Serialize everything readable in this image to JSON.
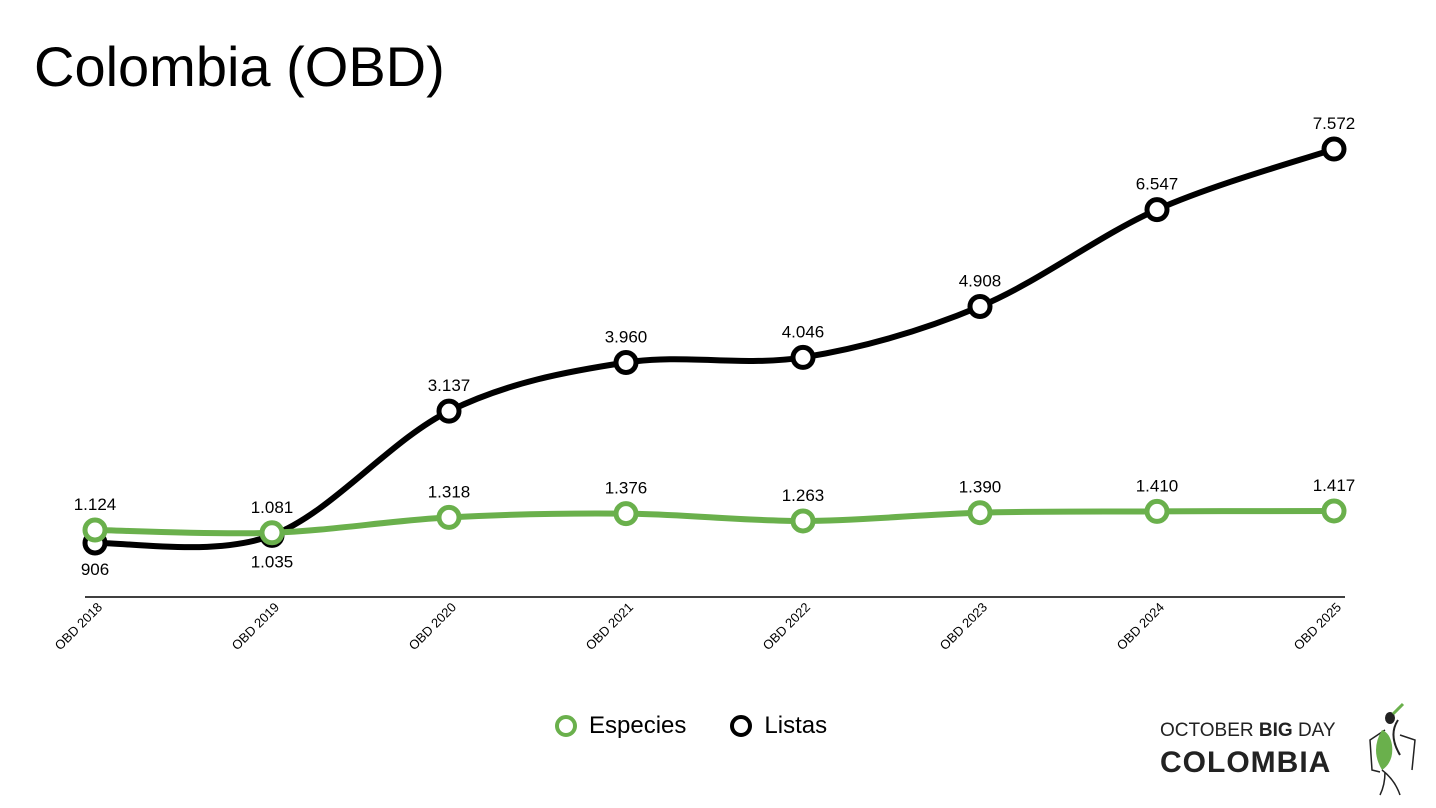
{
  "chart_data": {
    "type": "line",
    "title": "Colombia (OBD)",
    "categories": [
      "OBD 2018",
      "OBD 2019",
      "OBD 2020",
      "OBD 2021",
      "OBD 2022",
      "OBD 2023",
      "OBD 2024",
      "OBD 2025"
    ],
    "series": [
      {
        "name": "Especies",
        "color": "#6ab04c",
        "values": [
          1124,
          1081,
          1318,
          1376,
          1263,
          1390,
          1410,
          1417
        ],
        "labels": [
          "1.124",
          "1.081",
          "1.318",
          "1.376",
          "1.263",
          "1.390",
          "1.410",
          "1.417"
        ]
      },
      {
        "name": "Listas",
        "color": "#000000",
        "values": [
          906,
          1035,
          3137,
          3960,
          4046,
          4908,
          6547,
          7572
        ],
        "labels": [
          "906",
          "1.035",
          "3.137",
          "3.960",
          "4.046",
          "4.908",
          "6.547",
          "7.572"
        ]
      }
    ],
    "legend": "bottom-center",
    "grid": false
  },
  "logo": {
    "line1_a": "OCTOBER ",
    "line1_b": "BIG",
    "line1_c": " DAY",
    "line2": "COLOMBIA"
  }
}
